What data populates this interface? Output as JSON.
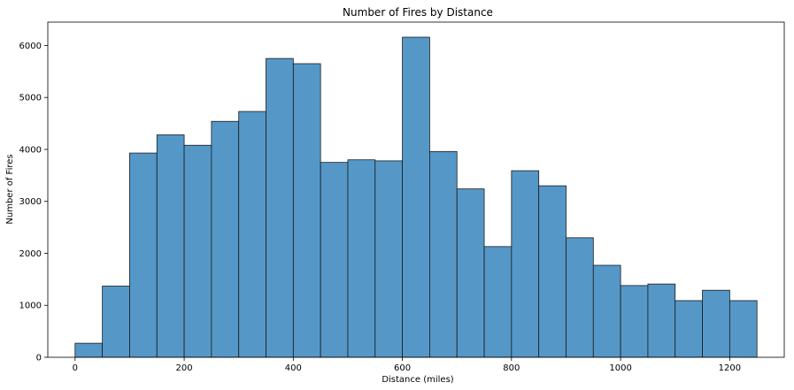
{
  "colors": {
    "bar_fill": "#5598c8",
    "bar_edge": "#1a1a1a",
    "axis": "#000000",
    "background": "#ffffff"
  },
  "chart_data": {
    "type": "bar",
    "title": "Number of Fires by Distance",
    "xlabel": "Distance (miles)",
    "ylabel": "Number of Fires",
    "xlim": [
      -50,
      1300
    ],
    "ylim": [
      0,
      6450
    ],
    "xticks": [
      0,
      200,
      400,
      600,
      800,
      1000,
      1200
    ],
    "yticks": [
      0,
      1000,
      2000,
      3000,
      4000,
      5000,
      6000
    ],
    "bin_edges": [
      0,
      50,
      100,
      150,
      200,
      250,
      300,
      350,
      400,
      450,
      500,
      550,
      600,
      650,
      700,
      750,
      800,
      850,
      900,
      950,
      1000,
      1050,
      1100,
      1150,
      1200,
      1250
    ],
    "values": [
      270,
      1370,
      3930,
      4280,
      4080,
      4540,
      4730,
      5750,
      5650,
      3750,
      3800,
      3780,
      6160,
      3960,
      3240,
      2130,
      3590,
      3300,
      2300,
      1770,
      1380,
      1410,
      1090,
      1290,
      1090
    ],
    "grid": false
  }
}
